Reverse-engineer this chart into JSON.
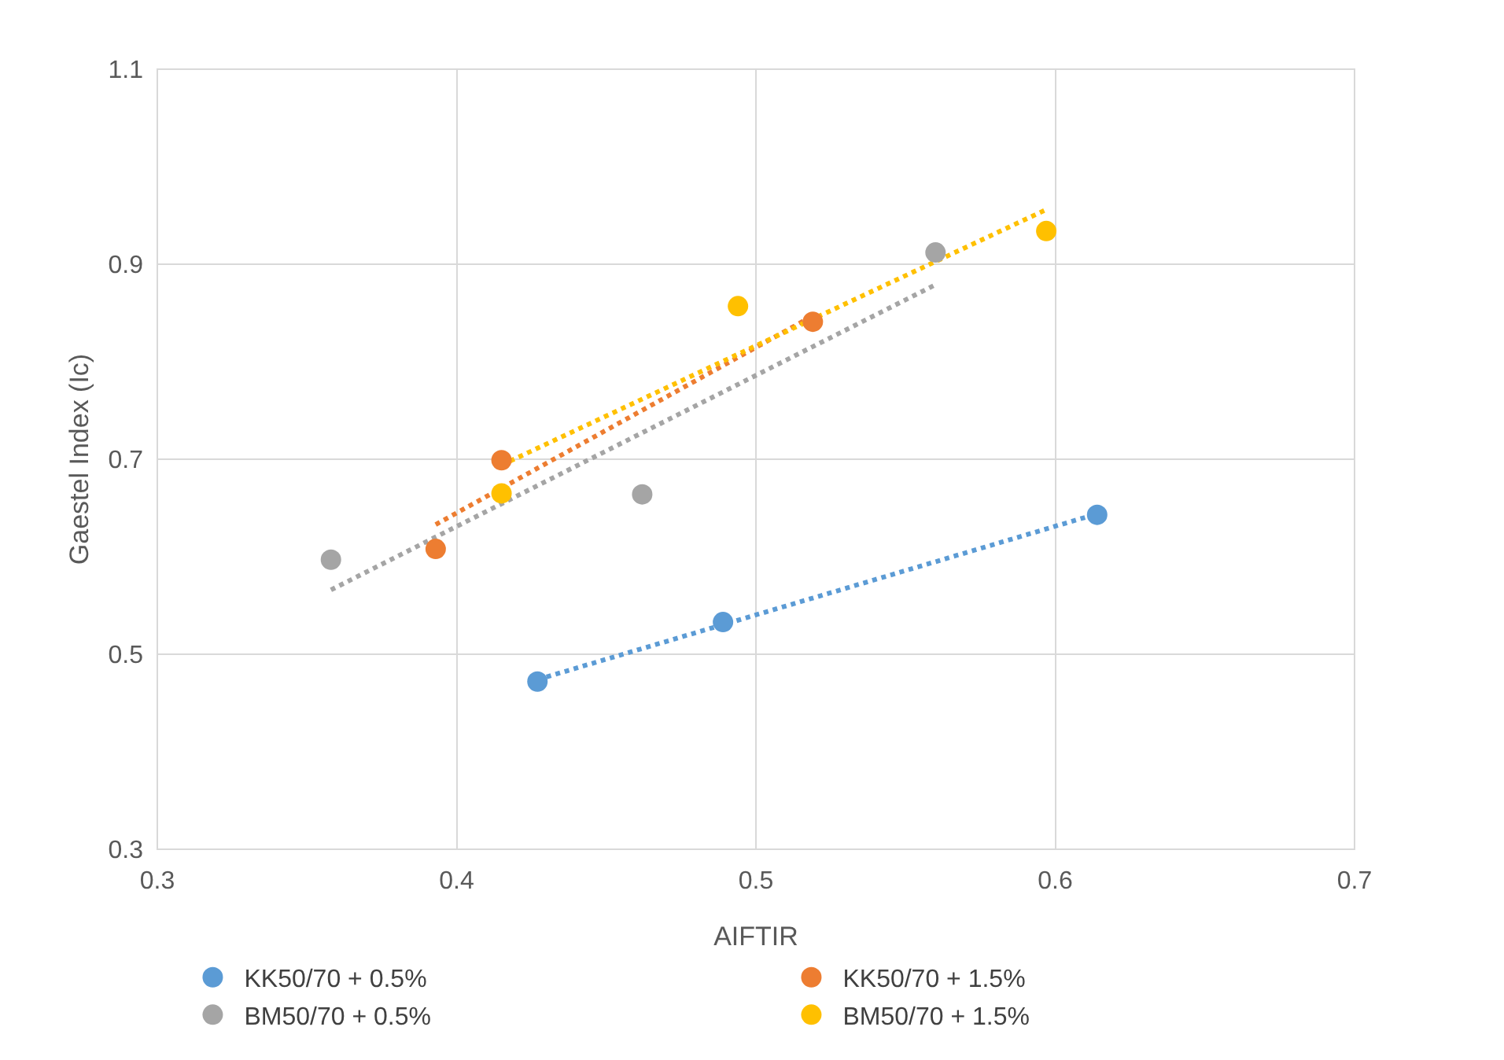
{
  "chart_data": {
    "type": "scatter",
    "xlabel": "AIFTIR",
    "ylabel": "Gaestel Index (Ic)",
    "xlim": [
      0.3,
      0.7
    ],
    "xticks": [
      0.3,
      0.4,
      0.5,
      0.6,
      0.7
    ],
    "ylim": [
      0.3,
      1.1
    ],
    "yticks": [
      0.3,
      0.5,
      0.7,
      0.9,
      1.1
    ],
    "grid": true,
    "legend": "bottom",
    "marker": "circle",
    "series": [
      {
        "name": "KK50/70 + 0.5%",
        "color": "#5b9bd5",
        "x": [
          0.427,
          0.489,
          0.614
        ],
        "values": [
          0.472,
          0.533,
          0.643
        ]
      },
      {
        "name": "KK50/70 + 1.5%",
        "color": "#ed7d31",
        "x": [
          0.393,
          0.415,
          0.519
        ],
        "values": [
          0.608,
          0.699,
          0.841
        ]
      },
      {
        "name": "BM50/70 + 0.5%",
        "color": "#a5a5a5",
        "x": [
          0.358,
          0.462,
          0.56
        ],
        "values": [
          0.597,
          0.664,
          0.912
        ]
      },
      {
        "name": "BM50/70 + 1.5%",
        "color": "#ffc000",
        "x": [
          0.415,
          0.494,
          0.597
        ],
        "values": [
          0.665,
          0.857,
          0.934
        ]
      },
      {
        "type": "line",
        "marker": "none",
        "line_style": "dotted",
        "color": "#5b9bd5",
        "x": [
          0.427,
          0.614
        ],
        "values": [
          0.474,
          0.644
        ]
      },
      {
        "type": "line",
        "marker": "none",
        "line_style": "dotted",
        "color": "#ed7d31",
        "x": [
          0.393,
          0.519
        ],
        "values": [
          0.633,
          0.847
        ]
      },
      {
        "type": "line",
        "marker": "none",
        "line_style": "dotted",
        "color": "#a5a5a5",
        "x": [
          0.358,
          0.56
        ],
        "values": [
          0.566,
          0.879
        ]
      },
      {
        "type": "line",
        "marker": "none",
        "line_style": "dotted",
        "color": "#ffc000",
        "x": [
          0.415,
          0.597
        ],
        "values": [
          0.694,
          0.956
        ]
      }
    ]
  }
}
